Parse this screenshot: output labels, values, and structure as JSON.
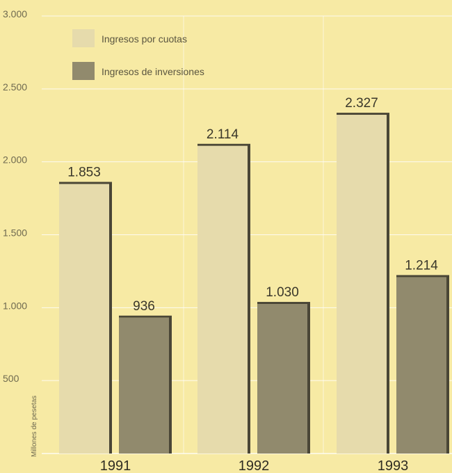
{
  "chart_data": {
    "type": "bar",
    "title": "",
    "xlabel": "",
    "ylabel": "Millones de pesetas",
    "ylim": [
      0,
      3000
    ],
    "yticks": [
      {
        "value": 500,
        "label": "500"
      },
      {
        "value": 1000,
        "label": "1.000"
      },
      {
        "value": 1500,
        "label": "1.500"
      },
      {
        "value": 2000,
        "label": "2.000"
      },
      {
        "value": 2500,
        "label": "2.500"
      },
      {
        "value": 3000,
        "label": "3.000"
      }
    ],
    "categories": [
      "1991",
      "1992",
      "1993"
    ],
    "series": [
      {
        "name": "Ingresos por cuotas",
        "color": "#e6dbac",
        "values": [
          1853,
          2114,
          2327
        ],
        "labels": [
          "1.853",
          "2.114",
          "2.327"
        ]
      },
      {
        "name": "Ingresos de inversiones",
        "color": "#918a6d",
        "values": [
          936,
          1030,
          1214
        ],
        "labels": [
          "936",
          "1.030",
          "1.214"
        ]
      }
    ],
    "grid": true,
    "legend_position": "top-left",
    "colors": {
      "background": "#f7eaa4",
      "gridline": "#ffffff",
      "bar_edge": "#4a4636"
    }
  }
}
